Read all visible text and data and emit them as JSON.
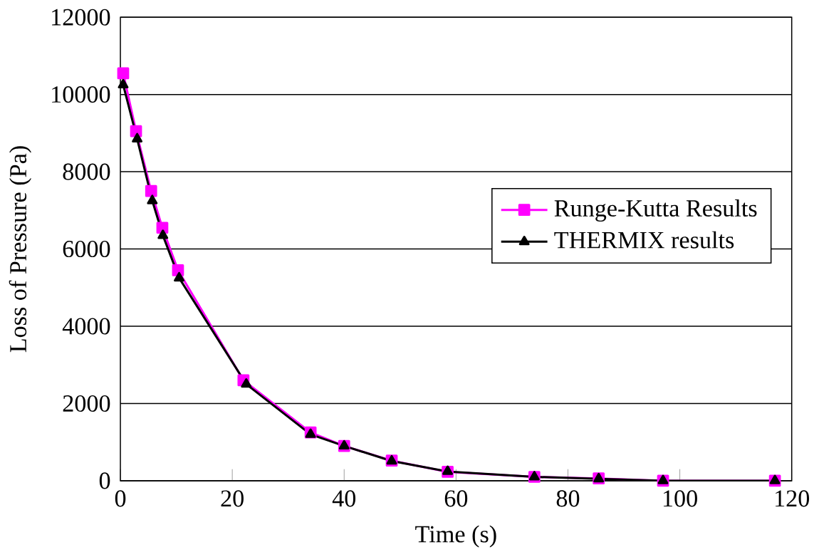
{
  "chart_data": {
    "type": "line",
    "xlabel": "Time (s)",
    "ylabel": "Loss of Pressure (Pa)",
    "xlim": [
      0,
      120
    ],
    "ylim": [
      0,
      12000
    ],
    "xticks": [
      0,
      20,
      40,
      60,
      80,
      100,
      120
    ],
    "yticks": [
      0,
      2000,
      4000,
      6000,
      8000,
      10000,
      12000
    ],
    "grid": "y",
    "legend": "right",
    "series": [
      {
        "name": "Runge-Kutta Results",
        "color": "#ff00ff",
        "marker": "square",
        "x": [
          0.5,
          2.8,
          5.5,
          7.5,
          10.3,
          22,
          34,
          40,
          48.5,
          58.5,
          74,
          85.5,
          97,
          117
        ],
        "values": [
          10550,
          9050,
          7500,
          6550,
          5450,
          2600,
          1250,
          900,
          520,
          230,
          100,
          60,
          0,
          0
        ]
      },
      {
        "name": "THERMIX results",
        "color": "#000000",
        "marker": "triangle",
        "x": [
          0.5,
          3,
          5.7,
          7.6,
          10.5,
          22.5,
          34,
          40,
          48.5,
          58.5,
          74,
          85.5,
          97,
          117
        ],
        "values": [
          10250,
          8850,
          7250,
          6350,
          5250,
          2500,
          1200,
          900,
          510,
          240,
          100,
          50,
          0,
          0
        ]
      }
    ]
  }
}
